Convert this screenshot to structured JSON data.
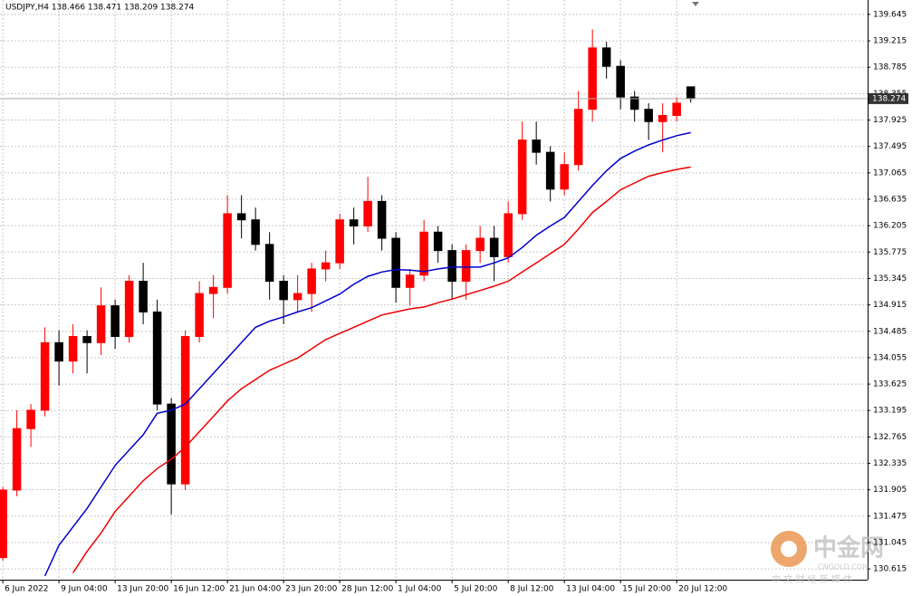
{
  "chart_data": {
    "type": "candlestick",
    "title": "USDJPY,H4  138.466 138.471 138.209 138.274",
    "open": [
      130.8,
      131.9,
      132.9,
      133.2,
      134.3,
      134.0,
      134.4,
      134.3,
      134.9,
      134.4,
      135.3,
      134.8,
      133.3,
      132.0,
      134.4,
      135.1,
      135.2,
      136.4,
      136.3,
      135.9,
      135.3,
      135.0,
      135.1,
      135.5,
      135.6,
      136.3,
      136.2,
      136.6,
      136.0,
      135.2,
      135.4,
      136.1,
      135.8,
      135.3,
      135.8,
      136.0,
      135.7,
      136.4,
      137.6,
      137.4,
      136.8,
      137.2,
      138.1,
      139.1,
      138.8,
      138.3,
      138.1,
      137.9,
      138.0,
      138.466
    ],
    "high": [
      131.95,
      133.2,
      133.3,
      134.55,
      134.5,
      134.6,
      134.5,
      135.2,
      135.0,
      135.4,
      135.6,
      135.0,
      133.4,
      134.5,
      135.3,
      135.4,
      136.7,
      136.7,
      136.5,
      136.1,
      135.4,
      135.4,
      135.6,
      135.8,
      136.4,
      136.5,
      137.0,
      136.7,
      136.1,
      135.5,
      136.3,
      136.2,
      135.9,
      135.9,
      136.2,
      136.2,
      136.6,
      137.9,
      137.9,
      137.5,
      137.4,
      138.4,
      139.4,
      139.2,
      138.9,
      138.4,
      138.2,
      138.2,
      138.3,
      138.471
    ],
    "low": [
      130.75,
      131.8,
      132.6,
      133.1,
      133.6,
      133.8,
      133.8,
      134.1,
      134.2,
      134.3,
      134.6,
      133.2,
      131.5,
      131.9,
      134.3,
      134.7,
      135.1,
      136.0,
      135.8,
      135.0,
      134.6,
      134.8,
      134.8,
      135.3,
      135.5,
      135.9,
      136.1,
      135.8,
      134.95,
      134.9,
      135.3,
      135.6,
      135.0,
      135.0,
      135.6,
      135.3,
      135.6,
      136.3,
      137.2,
      136.6,
      136.7,
      137.1,
      137.9,
      138.6,
      138.1,
      137.9,
      137.6,
      137.4,
      137.9,
      138.209
    ],
    "close": [
      131.9,
      132.9,
      133.2,
      134.3,
      134.0,
      134.4,
      134.3,
      134.9,
      134.4,
      135.3,
      134.8,
      133.3,
      132.0,
      134.4,
      135.1,
      135.2,
      136.4,
      136.3,
      135.9,
      135.3,
      135.0,
      135.1,
      135.5,
      135.6,
      136.3,
      136.2,
      136.6,
      136.0,
      135.2,
      135.4,
      136.1,
      135.8,
      135.3,
      135.8,
      136.0,
      135.7,
      136.4,
      137.6,
      137.4,
      136.8,
      137.2,
      138.1,
      139.1,
      138.8,
      138.3,
      138.1,
      137.9,
      138.0,
      138.2,
      138.274
    ],
    "up_color": "#ff0000",
    "down_color": "#000000",
    "lines": [
      {
        "color": "#0000cc",
        "values": [
          null,
          null,
          null,
          130.5,
          131.0,
          131.3,
          131.6,
          131.95,
          132.3,
          132.55,
          132.8,
          133.15,
          133.2,
          133.3,
          133.55,
          133.8,
          134.05,
          134.3,
          134.55,
          134.65,
          134.72,
          134.8,
          134.87,
          134.98,
          135.09,
          135.25,
          135.38,
          135.45,
          135.49,
          135.48,
          135.46,
          135.5,
          135.53,
          135.53,
          135.53,
          135.6,
          135.68,
          135.85,
          136.05,
          136.2,
          136.34,
          136.6,
          136.86,
          137.1,
          137.3,
          137.42,
          137.52,
          137.6,
          137.67,
          137.72
        ]
      },
      {
        "color": "#ee0000",
        "values": [
          null,
          null,
          null,
          null,
          null,
          130.55,
          130.9,
          131.2,
          131.55,
          131.8,
          132.05,
          132.25,
          132.4,
          132.6,
          132.85,
          133.1,
          133.35,
          133.55,
          133.7,
          133.85,
          133.95,
          134.05,
          134.2,
          134.35,
          134.45,
          134.55,
          134.65,
          134.75,
          134.8,
          134.85,
          134.88,
          134.95,
          135.01,
          135.08,
          135.15,
          135.22,
          135.3,
          135.45,
          135.6,
          135.75,
          135.9,
          136.15,
          136.42,
          136.6,
          136.79,
          136.9,
          137.01,
          137.07,
          137.12,
          137.16
        ]
      }
    ],
    "current_price": 138.274,
    "xlim": [
      -0.2,
      61.6
    ],
    "xticks": [
      {
        "value": 0,
        "label": "6 Jun 2022"
      },
      {
        "value": 4,
        "label": "9 Jun 04:00"
      },
      {
        "value": 8,
        "label": "13 Jun 20:00"
      },
      {
        "value": 12,
        "label": "16 Jun 12:00"
      },
      {
        "value": 16,
        "label": "21 Jun 04:00"
      },
      {
        "value": 20,
        "label": "23 Jun 20:00"
      },
      {
        "value": 24,
        "label": "28 Jun 12:00"
      },
      {
        "value": 28,
        "label": "1 Jul 04:00"
      },
      {
        "value": 32,
        "label": "5 Jul 20:00"
      },
      {
        "value": 36,
        "label": "8 Jul 12:00"
      },
      {
        "value": 40,
        "label": "13 Jul 04:00"
      },
      {
        "value": 44,
        "label": "15 Jul 20:00"
      },
      {
        "value": 48,
        "label": "20 Jul 12:00"
      }
    ],
    "ylim": [
      130.44,
      139.88
    ],
    "yticks": [
      139.645,
      139.215,
      138.785,
      138.355,
      137.925,
      137.495,
      137.065,
      136.635,
      136.205,
      135.775,
      135.345,
      134.915,
      134.485,
      134.055,
      133.625,
      133.195,
      132.765,
      132.335,
      131.905,
      131.475,
      131.045,
      130.615
    ],
    "grid": true
  },
  "watermark": {
    "brand": "中金网",
    "site": "CNGOLD.COM",
    "slogan": "中 文 财 经 新 媒 体"
  }
}
